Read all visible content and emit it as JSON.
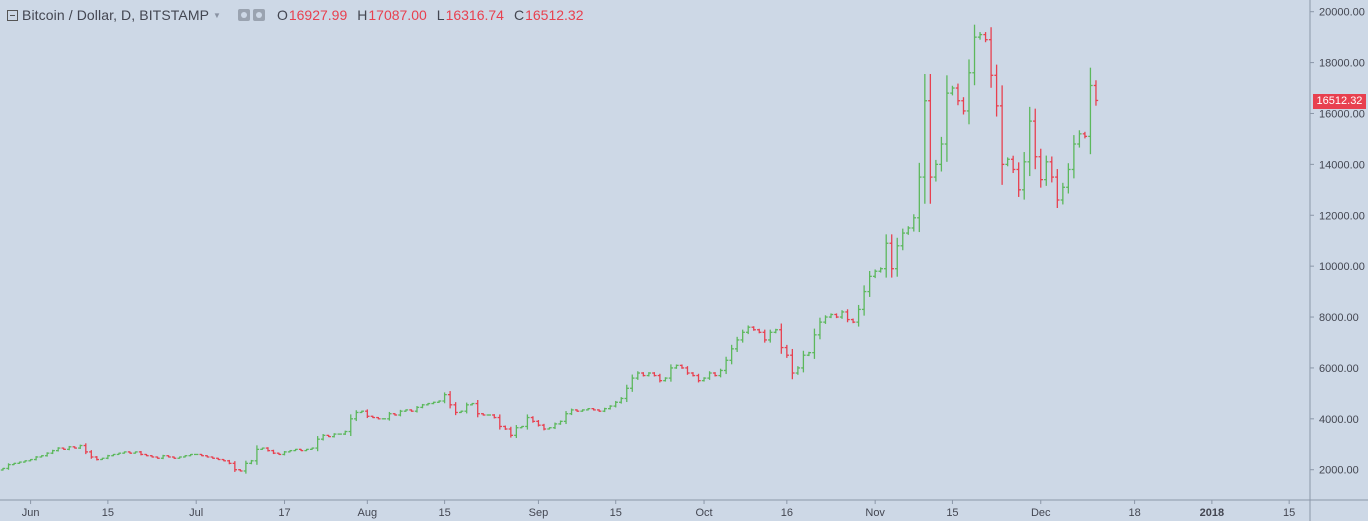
{
  "header": {
    "symbol": "Bitcoin / Dollar, D, BITSTAMP",
    "o_label": "O",
    "o_value": "16927.99",
    "h_label": "H",
    "h_value": "17087.00",
    "l_label": "L",
    "l_value": "16316.74",
    "c_label": "C",
    "c_value": "16512.32"
  },
  "last_price_tag": "16512.32",
  "colors": {
    "up": "#5cb85c",
    "down": "#e8404f",
    "background": "#cdd8e6",
    "axis": "#8b97a8"
  },
  "chart_data": {
    "type": "ohlc",
    "title": "Bitcoin / Dollar, D, BITSTAMP",
    "ylim": [
      1500,
      21000
    ],
    "y_ticks": [
      2000,
      4000,
      6000,
      8000,
      10000,
      12000,
      14000,
      16000,
      18000,
      20000
    ],
    "y_tick_labels": [
      "2000.00",
      "4000.00",
      "6000.00",
      "8000.00",
      "10000.00",
      "12000.00",
      "14000.00",
      "16000.00",
      "18000.00",
      "20000.00"
    ],
    "x_ticks": [
      {
        "date": "2017-06-01",
        "label": "Jun"
      },
      {
        "date": "2017-06-15",
        "label": "15"
      },
      {
        "date": "2017-07-01",
        "label": "Jul"
      },
      {
        "date": "2017-07-17",
        "label": "17"
      },
      {
        "date": "2017-08-01",
        "label": "Aug"
      },
      {
        "date": "2017-08-15",
        "label": "15"
      },
      {
        "date": "2017-09-01",
        "label": "Sep"
      },
      {
        "date": "2017-09-15",
        "label": "15"
      },
      {
        "date": "2017-10-01",
        "label": "Oct"
      },
      {
        "date": "2017-10-16",
        "label": "16"
      },
      {
        "date": "2017-11-01",
        "label": "Nov"
      },
      {
        "date": "2017-11-15",
        "label": "15"
      },
      {
        "date": "2017-12-01",
        "label": "Dec"
      },
      {
        "date": "2017-12-18",
        "label": "18"
      },
      {
        "date": "2018-01-01",
        "label": "2018"
      },
      {
        "date": "2018-01-15",
        "label": "15"
      }
    ],
    "x_start": "2017-05-27",
    "bars_per_day": 1,
    "close": [
      2050,
      2200,
      2250,
      2300,
      2350,
      2400,
      2500,
      2550,
      2650,
      2750,
      2850,
      2800,
      2900,
      2850,
      2950,
      2700,
      2500,
      2400,
      2450,
      2550,
      2600,
      2650,
      2700,
      2650,
      2700,
      2600,
      2550,
      2500,
      2450,
      2550,
      2500,
      2450,
      2500,
      2550,
      2600,
      2600,
      2550,
      2500,
      2450,
      2400,
      2350,
      2250,
      2000,
      1950,
      2250,
      2350,
      2800,
      2850,
      2750,
      2650,
      2600,
      2700,
      2750,
      2800,
      2750,
      2800,
      2850,
      3200,
      3350,
      3300,
      3400,
      3400,
      3500,
      4000,
      4250,
      4300,
      4100,
      4050,
      4000,
      4000,
      4200,
      4150,
      4300,
      4350,
      4300,
      4450,
      4550,
      4600,
      4650,
      4700,
      4950,
      4550,
      4250,
      4300,
      4550,
      4600,
      4200,
      4150,
      4150,
      4050,
      3700,
      3600,
      3350,
      3650,
      3700,
      4050,
      3900,
      3750,
      3600,
      3650,
      3800,
      3900,
      4200,
      4350,
      4300,
      4350,
      4400,
      4350,
      4300,
      4400,
      4500,
      4650,
      4800,
      5200,
      5600,
      5800,
      5700,
      5800,
      5700,
      5500,
      5600,
      6000,
      6100,
      6000,
      5800,
      5700,
      5500,
      5600,
      5800,
      5700,
      5900,
      6300,
      6750,
      7100,
      7400,
      7600,
      7500,
      7400,
      7100,
      7400,
      7500,
      6800,
      6500,
      5800,
      6000,
      6500,
      6600,
      7300,
      7800,
      8000,
      8100,
      8000,
      8200,
      7900,
      7800,
      8300,
      9000,
      9600,
      9800,
      9900,
      10900,
      9900,
      10800,
      11300,
      11500,
      11900,
      13500,
      16500,
      13500,
      14000,
      14800,
      16800,
      17000,
      16500,
      16100,
      17600,
      19000,
      19100,
      18900,
      17500,
      16300,
      14000,
      14200,
      13800,
      13000,
      14100,
      15700,
      14300,
      13400,
      14100,
      13500,
      12600,
      13100,
      13800,
      14800,
      15200,
      15100,
      17100,
      16512
    ]
  }
}
